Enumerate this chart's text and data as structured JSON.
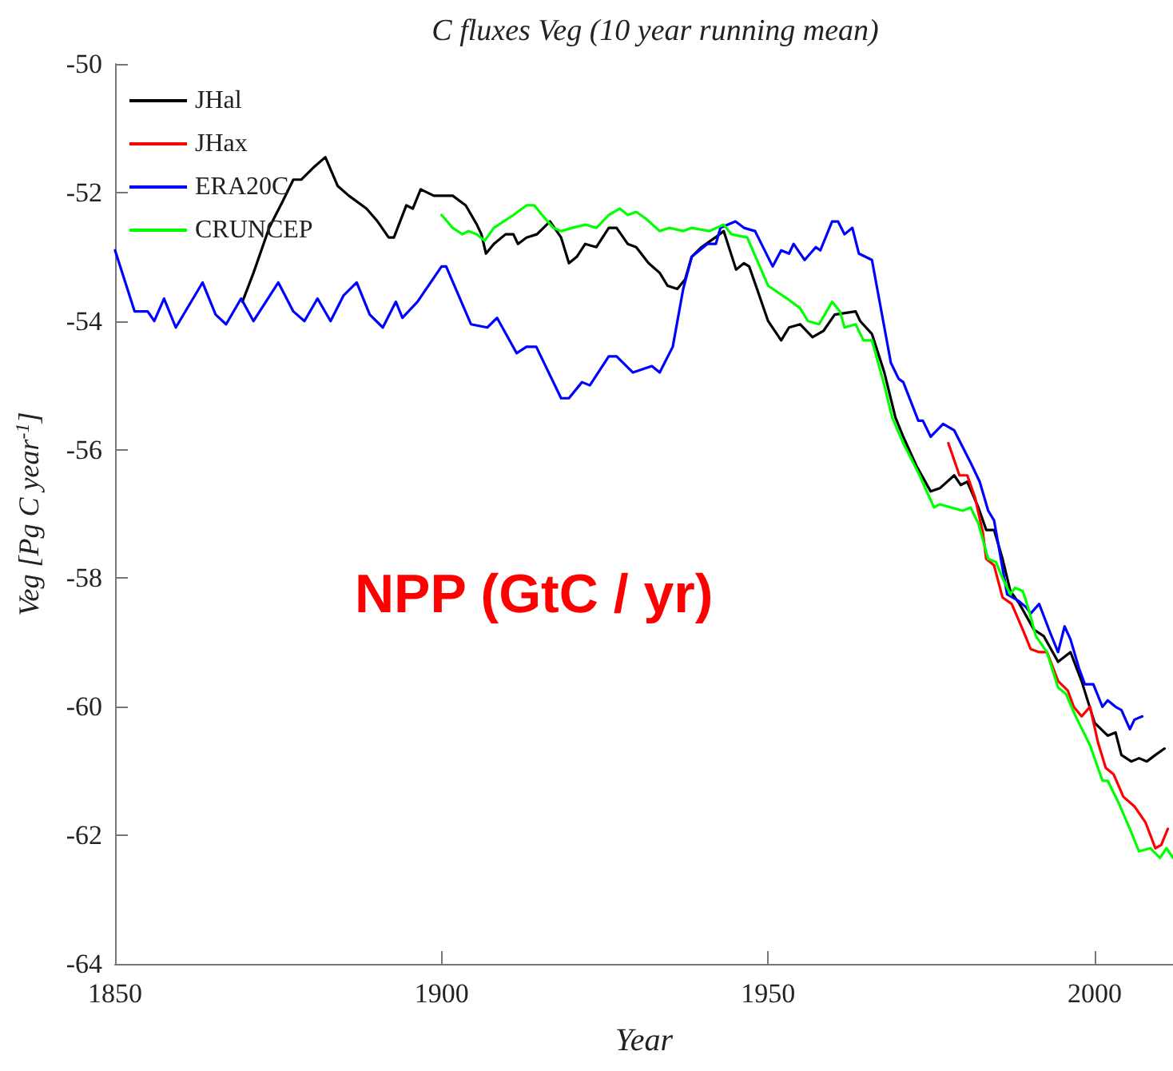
{
  "chart_data": {
    "type": "line",
    "title": "C fluxes Veg (10 year running mean)",
    "xlabel": "Year",
    "ylabel": "Veg [Pg C year$^{-1}$]",
    "annotations": [
      "NPP (GtC / yr)"
    ],
    "xlim": [
      1850,
      2012
    ],
    "xticks": [
      1850,
      1900,
      1950,
      2000
    ],
    "ylim": [
      -64,
      -50
    ],
    "yticks": [
      -64,
      -62,
      -60,
      -58,
      -56,
      -54,
      -52,
      -50
    ],
    "grid": false,
    "legend": "top left",
    "marker": "none",
    "line_style": "solid",
    "series": [
      {
        "name": "JHal",
        "color": "#000000",
        "x": [
          1869.5,
          1871.2,
          1873.6,
          1875.6,
          1877.3,
          1878.5,
          1880.5,
          1882.2,
          1884.1,
          1885.8,
          1888.5,
          1890.2,
          1891.9,
          1892.7,
          1894.6,
          1895.6,
          1896.8,
          1898.8,
          1901.7,
          1903.7,
          1905.4,
          1906.1,
          1906.8,
          1908,
          1909.8,
          1911,
          1911.7,
          1913,
          1914.6,
          1916.6,
          1918.3,
          1919.5,
          1920.7,
          1922,
          1923.7,
          1925.6,
          1926.8,
          1928.5,
          1929.8,
          1931.7,
          1933.4,
          1934.6,
          1936.1,
          1937.3,
          1938.3,
          1939.8,
          1941.9,
          1943.2,
          1945.1,
          1946.3,
          1947.1,
          1948.3,
          1950,
          1952,
          1953.2,
          1954.9,
          1956.8,
          1958.5,
          1960.2,
          1963.4,
          1964.1,
          1965.9,
          1967.8,
          1969.5,
          1970.7,
          1972.7,
          1974.9,
          1976.3,
          1978.5,
          1979.5,
          1980.5,
          1982.2,
          1983.4,
          1984.6,
          1985.9,
          1987.1,
          1988.5,
          1990.7,
          1992.2,
          1994.4,
          1996.3,
          1998,
          2000,
          2002,
          2003.2,
          2004.1,
          2005.6,
          2006.8,
          2008,
          2009.3,
          2010.7
        ],
        "values": [
          -53.7,
          -53.25,
          -52.55,
          -52.15,
          -51.8,
          -51.8,
          -51.6,
          -51.45,
          -51.9,
          -52.05,
          -52.25,
          -52.45,
          -52.7,
          -52.7,
          -52.2,
          -52.25,
          -51.95,
          -52.05,
          -52.05,
          -52.2,
          -52.5,
          -52.65,
          -52.95,
          -52.8,
          -52.65,
          -52.65,
          -52.8,
          -52.7,
          -52.65,
          -52.45,
          -52.7,
          -53.1,
          -53.0,
          -52.8,
          -52.85,
          -52.55,
          -52.55,
          -52.8,
          -52.85,
          -53.1,
          -53.25,
          -53.45,
          -53.5,
          -53.35,
          -53.0,
          -52.85,
          -52.7,
          -52.6,
          -53.2,
          -53.1,
          -53.15,
          -53.5,
          -54.0,
          -54.3,
          -54.1,
          -54.05,
          -54.25,
          -54.15,
          -53.9,
          -53.85,
          -54.0,
          -54.2,
          -54.8,
          -55.5,
          -55.8,
          -56.25,
          -56.65,
          -56.6,
          -56.4,
          -56.55,
          -56.5,
          -56.9,
          -57.25,
          -57.25,
          -57.7,
          -58.2,
          -58.4,
          -58.8,
          -58.9,
          -59.3,
          -59.15,
          -59.6,
          -60.25,
          -60.45,
          -60.4,
          -60.75,
          -60.85,
          -60.8,
          -60.85,
          -60.75,
          -60.65
        ]
      },
      {
        "name": "JHax",
        "color": "#ff0000",
        "x": [
          1977.6,
          1979.3,
          1980.5,
          1981.7,
          1982.9,
          1983.4,
          1984.6,
          1985.9,
          1987.3,
          1989,
          1990.2,
          1991.5,
          1992.7,
          1994.4,
          1995.9,
          1996.8,
          1998,
          1999.3,
          2000.5,
          2001.7,
          2002.9,
          2004.4,
          2006.1,
          2007.8,
          2009.3,
          2010.2,
          2011.2
        ],
        "values": [
          -55.9,
          -56.4,
          -56.4,
          -56.75,
          -57.3,
          -57.7,
          -57.8,
          -58.3,
          -58.4,
          -58.8,
          -59.1,
          -59.15,
          -59.15,
          -59.6,
          -59.75,
          -60.0,
          -60.15,
          -60.0,
          -60.55,
          -60.95,
          -61.05,
          -61.4,
          -61.55,
          -61.8,
          -62.2,
          -62.15,
          -61.9
        ]
      },
      {
        "name": "ERA20C",
        "color": "#0000ff",
        "x": [
          1850,
          1853,
          1855,
          1856,
          1857.5,
          1859.3,
          1863.4,
          1865.4,
          1867,
          1869.3,
          1871.2,
          1875,
          1877.3,
          1879,
          1881,
          1883,
          1885,
          1887,
          1889,
          1891,
          1893,
          1894,
          1896.3,
          1900,
          1900.7,
          1904.5,
          1907,
          1908.5,
          1911.5,
          1913,
          1914.5,
          1918.3,
          1919.5,
          1921.5,
          1922.7,
          1925.6,
          1926.8,
          1929.3,
          1932.2,
          1933.4,
          1935.4,
          1937,
          1938.3,
          1940.7,
          1942,
          1942.7,
          1945,
          1946.3,
          1948,
          1950.7,
          1952,
          1953.2,
          1953.9,
          1955.6,
          1957.3,
          1958,
          1959.8,
          1960.7,
          1961.7,
          1962.9,
          1963.9,
          1965.9,
          1968.8,
          1970,
          1970.7,
          1973,
          1973.7,
          1974.9,
          1976.8,
          1978.5,
          1981,
          1982.4,
          1983.7,
          1984.6,
          1986.6,
          1988.3,
          1989.5,
          1990.2,
          1991.5,
          1993.2,
          1994.4,
          1995.4,
          1996.3,
          1997.6,
          1998.5,
          1999.8,
          2001.2,
          2002,
          2003.2,
          2004.1,
          2005.4,
          2006.1,
          2007.3
        ],
        "values": [
          -52.9,
          -53.85,
          -53.85,
          -54.0,
          -53.65,
          -54.1,
          -53.4,
          -53.9,
          -54.05,
          -53.65,
          -54.0,
          -53.4,
          -53.85,
          -54.0,
          -53.65,
          -54.0,
          -53.6,
          -53.4,
          -53.9,
          -54.1,
          -53.7,
          -53.95,
          -53.7,
          -53.15,
          -53.15,
          -54.05,
          -54.1,
          -53.95,
          -54.5,
          -54.4,
          -54.4,
          -55.2,
          -55.2,
          -54.95,
          -55.0,
          -54.55,
          -54.55,
          -54.8,
          -54.7,
          -54.8,
          -54.4,
          -53.5,
          -53.0,
          -52.8,
          -52.8,
          -52.55,
          -52.45,
          -52.55,
          -52.6,
          -53.15,
          -52.9,
          -52.95,
          -52.8,
          -53.05,
          -52.85,
          -52.9,
          -52.45,
          -52.45,
          -52.65,
          -52.55,
          -52.95,
          -53.05,
          -54.65,
          -54.9,
          -54.95,
          -55.55,
          -55.55,
          -55.8,
          -55.6,
          -55.7,
          -56.2,
          -56.5,
          -56.95,
          -57.1,
          -58.25,
          -58.35,
          -58.45,
          -58.55,
          -58.4,
          -58.85,
          -59.15,
          -58.75,
          -58.95,
          -59.4,
          -59.65,
          -59.65,
          -60.0,
          -59.9,
          -60.0,
          -60.05,
          -60.35,
          -60.2,
          -60.15
        ]
      },
      {
        "name": "CRUNCEP",
        "color": "#00ff00",
        "x": [
          1900,
          1901.7,
          1903.2,
          1904.1,
          1905.4,
          1906.6,
          1908,
          1911,
          1913,
          1914.2,
          1915.4,
          1917.1,
          1918.3,
          1920,
          1922,
          1923.7,
          1925.6,
          1927.3,
          1928.5,
          1929.8,
          1931.2,
          1933.4,
          1934.9,
          1937,
          1938.3,
          1941,
          1943.2,
          1944.4,
          1946.8,
          1950,
          1952.9,
          1954.9,
          1956.1,
          1957.8,
          1959.8,
          1961,
          1961.7,
          1963.4,
          1964.6,
          1965.9,
          1967.8,
          1969,
          1970.7,
          1973.2,
          1975.4,
          1976.3,
          1979.8,
          1981,
          1982.2,
          1983.7,
          1984.9,
          1985.9,
          1987.1,
          1987.8,
          1989,
          1989.8,
          1991,
          1992.7,
          1994.4,
          1995.6,
          1997.1,
          1999.3,
          2001.2,
          2002,
          2003.7,
          2005.4,
          2006.8,
          2008.5,
          2010,
          2011,
          2012
        ],
        "values": [
          -52.35,
          -52.55,
          -52.65,
          -52.6,
          -52.65,
          -52.75,
          -52.55,
          -52.35,
          -52.2,
          -52.2,
          -52.35,
          -52.55,
          -52.6,
          -52.55,
          -52.5,
          -52.55,
          -52.35,
          -52.25,
          -52.35,
          -52.3,
          -52.4,
          -52.6,
          -52.55,
          -52.6,
          -52.55,
          -52.6,
          -52.5,
          -52.65,
          -52.7,
          -53.45,
          -53.65,
          -53.8,
          -54.0,
          -54.05,
          -53.7,
          -53.85,
          -54.1,
          -54.05,
          -54.3,
          -54.3,
          -55.0,
          -55.5,
          -55.9,
          -56.4,
          -56.9,
          -56.85,
          -56.95,
          -56.9,
          -57.15,
          -57.7,
          -57.75,
          -58.0,
          -58.25,
          -58.15,
          -58.2,
          -58.45,
          -58.9,
          -59.15,
          -59.7,
          -59.8,
          -60.15,
          -60.6,
          -61.15,
          -61.15,
          -61.5,
          -61.9,
          -62.25,
          -62.2,
          -62.35,
          -62.2,
          -62.35
        ]
      }
    ]
  }
}
